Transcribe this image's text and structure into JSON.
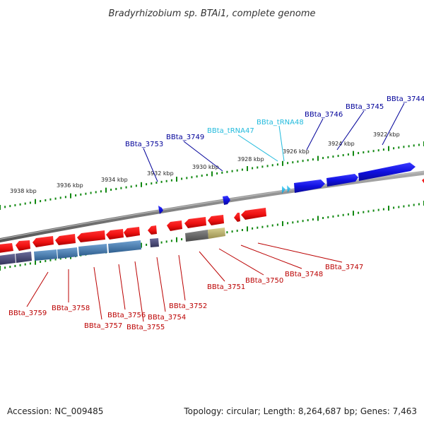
{
  "title": "Bradyrhizobium sp. BTAi1, complete genome",
  "accession_label": "Accession: NC_009485",
  "stats_label": "Topology: circular; Length: 8,264,687 bp; Genes: 7,463",
  "colors": {
    "forward_gene": "#1010e0",
    "forward_label": "#000099",
    "trna": "#22bbdd",
    "reverse_gene": "#ee1111",
    "reverse_label": "#bb0000",
    "backbone": "#888888",
    "ticks": "#118811"
  },
  "kbp_markers": [
    "3938 kbp",
    "3936 kbp",
    "3934 kbp",
    "3932 kbp",
    "3930 kbp",
    "3928 kbp",
    "3926 kbp",
    "3924 kbp",
    "3922 kbp"
  ],
  "forward_labels": [
    "BBta_3753",
    "BBta_3749",
    "BBta_tRNA47",
    "BBta_tRNA48",
    "BBta_3746",
    "BBta_3745",
    "BBta_3744"
  ],
  "reverse_labels": [
    "BBta_3759",
    "BBta_3758",
    "BBta_3757",
    "BBta_3756",
    "BBta_3755",
    "BBta_3754",
    "BBta_3752",
    "BBta_3751",
    "BBta_3750",
    "BBta_3748",
    "BBta_3747"
  ]
}
